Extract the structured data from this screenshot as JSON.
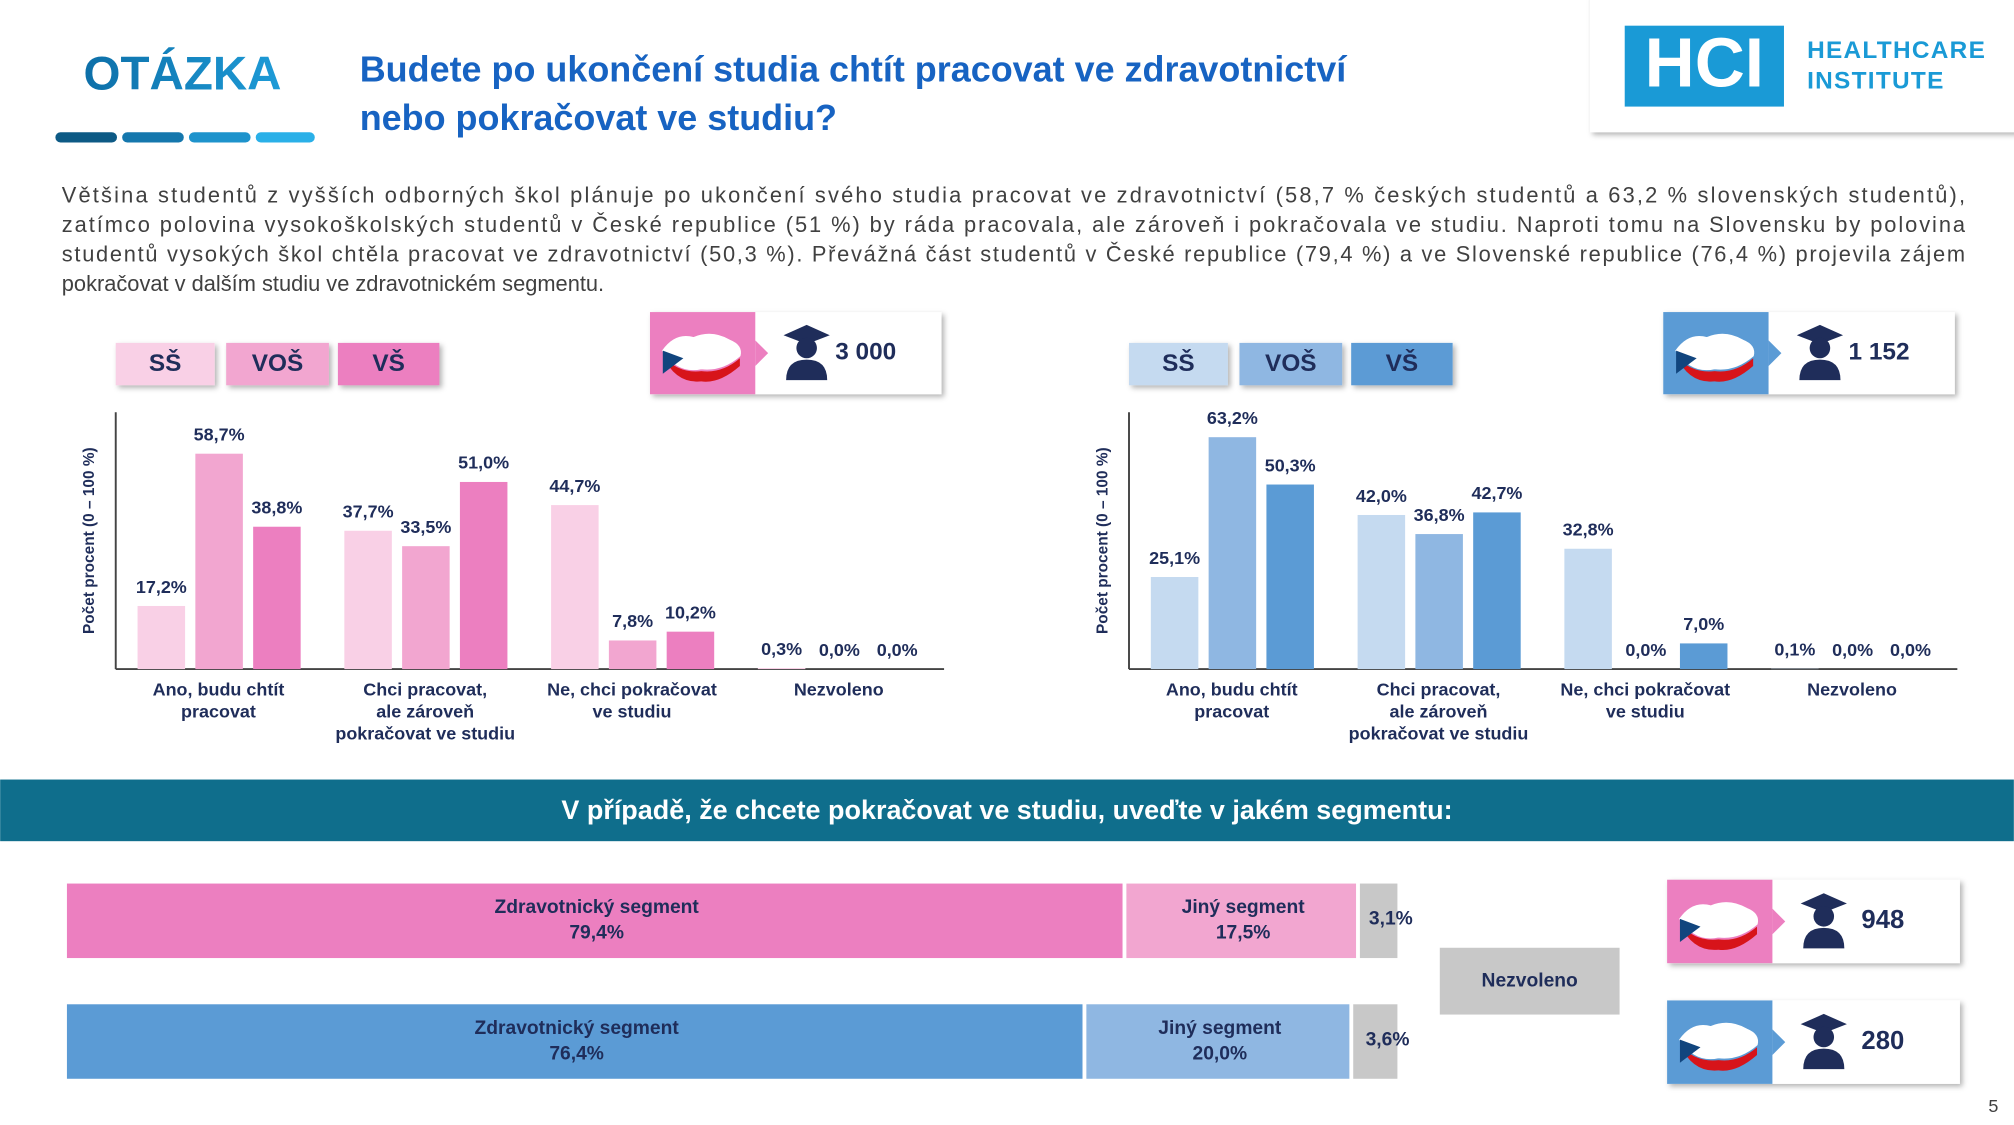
{
  "header": {
    "tag": "OTÁZKA",
    "title_lines": [
      "Budete po ukončení studia chtít pracovat ve zdravotnictví",
      "nebo pokračovat ve studiu?"
    ]
  },
  "logo": {
    "mark": "HCI",
    "lines": [
      "HEALTHCARE",
      "INSTITUTE"
    ]
  },
  "intro_lines": [
    "Většina studentů z vyšších odborných škol plánuje po ukončení svého studia pracovat ve zdravotnictví (58,7 % českých studentů a 63,2 % slovenských studentů),",
    "zatímco polovina vysokoškolských studentů v České republice (51 %) by ráda pracovala, ale zároveň i pokračovala ve studiu. Naproti tomu na Slovensku by polovina",
    "studentů vysokých škol chtěla pracovat ve zdravotnictví (50,3 %). Převážná část studentů v České republice (79,4 %) a ve Slovenské republice (76,4 %) projevila zájem",
    "pokračovat v dalším studiu ve zdravotnickém segmentu."
  ],
  "chart_data": [
    {
      "type": "bar",
      "ylabel": "Počet procent  (0 – 100 %)",
      "respondents": "3 000",
      "ylim": [
        0,
        70
      ],
      "categories": [
        [
          "Ano, budu chtít",
          "pracovat"
        ],
        [
          "Chci pracovat,",
          "ale zároveň",
          "pokračovat ve studiu"
        ],
        [
          "Ne, chci pokračovat",
          "ve studiu"
        ],
        [
          "Nezvoleno"
        ]
      ],
      "series": [
        {
          "name": "SŠ",
          "color": "#f9d0e6",
          "values": [
            17.2,
            37.7,
            44.7,
            0.3
          ],
          "value_labels": [
            "17,2%",
            "37,7%",
            "44,7%",
            "0,3%"
          ]
        },
        {
          "name": "VOŠ",
          "color": "#f2a6d0",
          "values": [
            58.7,
            33.5,
            7.8,
            0.0
          ],
          "value_labels": [
            "58,7%",
            "33,5%",
            "7,8%",
            "0,0%"
          ]
        },
        {
          "name": "VŠ",
          "color": "#ec7fc0",
          "values": [
            38.8,
            51.0,
            10.2,
            0.0
          ],
          "value_labels": [
            "38,8%",
            "51,0%",
            "10,2%",
            "0,0%"
          ]
        }
      ]
    },
    {
      "type": "bar",
      "ylabel": "Počet procent  (0 – 100 %)",
      "respondents": "1 152",
      "ylim": [
        0,
        70
      ],
      "categories": [
        [
          "Ano, budu chtít",
          "pracovat"
        ],
        [
          "Chci pracovat,",
          "ale zároveň",
          "pokračovat ve studiu"
        ],
        [
          "Ne, chci pokračovat",
          "ve studiu"
        ],
        [
          "Nezvoleno"
        ]
      ],
      "series": [
        {
          "name": "SŠ",
          "color": "#c5daf0",
          "values": [
            25.1,
            42.0,
            32.8,
            0.1
          ],
          "value_labels": [
            "25,1%",
            "42,0%",
            "32,8%",
            "0,1%"
          ]
        },
        {
          "name": "VOŠ",
          "color": "#8fb7e2",
          "values": [
            63.2,
            36.8,
            0.0,
            0.0
          ],
          "value_labels": [
            "63,2%",
            "36,8%",
            "0,0%",
            "0,0%"
          ]
        },
        {
          "name": "VŠ",
          "color": "#5b9bd5",
          "values": [
            50.3,
            42.7,
            7.0,
            0.0
          ],
          "value_labels": [
            "50,3%",
            "42,7%",
            "7,0%",
            "0,0%"
          ]
        }
      ]
    },
    {
      "type": "stacked_hbar",
      "title": "V případě, že chcete pokračovat ve studiu, uveďte v jakém segmentu:",
      "xlim": [
        0,
        100
      ],
      "categories": [
        null,
        null
      ],
      "respondents": [
        "948",
        "280"
      ],
      "series": [
        {
          "name": "Zdravotnický segment",
          "colors": [
            "#ec7fc0",
            "#5b9bd5"
          ],
          "values": [
            79.4,
            76.4
          ],
          "value_labels": [
            "79,4%",
            "76,4%"
          ]
        },
        {
          "name": "Jiný segment",
          "colors": [
            "#f2a6d0",
            "#8fb7e2"
          ],
          "values": [
            17.5,
            20.0
          ],
          "value_labels": [
            "17,5%",
            "20,0%"
          ]
        },
        {
          "name": "Nezvoleno",
          "color": "#c8c8c8",
          "colors": [
            "#c8c8c8",
            "#c8c8c8"
          ],
          "values": [
            3.1,
            3.6
          ],
          "value_labels": [
            "3,1%",
            "3,6%"
          ]
        }
      ]
    }
  ],
  "page_number": 5
}
